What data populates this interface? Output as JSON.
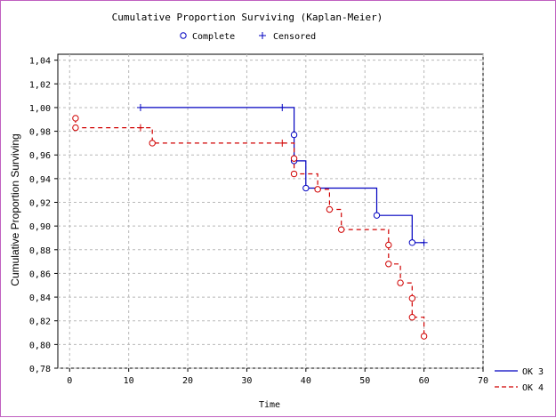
{
  "chart_data": {
    "type": "line",
    "title": "Cumulative Proportion Surviving (Kaplan-Meier)",
    "xlabel": "Time",
    "ylabel": "Cumulative Proportion Surviving",
    "xlim": [
      -2,
      70
    ],
    "ylim": [
      0.78,
      1.045
    ],
    "x_ticks": [
      0,
      10,
      20,
      30,
      40,
      50,
      60,
      70
    ],
    "x_tick_labels": [
      "0",
      "10",
      "20",
      "30",
      "40",
      "50",
      "60",
      "70"
    ],
    "y_ticks": [
      0.78,
      0.8,
      0.82,
      0.84,
      0.86,
      0.88,
      0.9,
      0.92,
      0.94,
      0.96,
      0.98,
      1.0,
      1.02,
      1.04
    ],
    "y_tick_labels": [
      "0,78",
      "0,80",
      "0,82",
      "0,84",
      "0,86",
      "0,88",
      "0,90",
      "0,92",
      "0,94",
      "0,96",
      "0,98",
      "1,00",
      "1,02",
      "1,04"
    ],
    "grid": true,
    "markers_legend": [
      {
        "label": "Complete",
        "symbol": "circle"
      },
      {
        "label": "Censored",
        "symbol": "plus"
      }
    ],
    "series": [
      {
        "name": "OK 3",
        "color": "#0000c0",
        "dash": "solid",
        "steps": [
          [
            12,
            1.0
          ],
          [
            38,
            1.0
          ],
          [
            38,
            0.977
          ],
          [
            38,
            0.955
          ],
          [
            40,
            0.955
          ],
          [
            40,
            0.932
          ],
          [
            52,
            0.932
          ],
          [
            52,
            0.909
          ],
          [
            58,
            0.909
          ],
          [
            58,
            0.886
          ],
          [
            60,
            0.886
          ]
        ],
        "complete": [
          [
            38,
            0.977
          ],
          [
            38,
            0.955
          ],
          [
            40,
            0.932
          ],
          [
            52,
            0.909
          ],
          [
            58,
            0.886
          ]
        ],
        "censored": [
          [
            12,
            1.0
          ],
          [
            36,
            1.0
          ],
          [
            60,
            0.886
          ]
        ]
      },
      {
        "name": "OK 4",
        "color": "#d00000",
        "dash": "dashed",
        "steps": [
          [
            1,
            0.991
          ],
          [
            1,
            0.983
          ],
          [
            14,
            0.983
          ],
          [
            14,
            0.97
          ],
          [
            38,
            0.97
          ],
          [
            38,
            0.957
          ],
          [
            38,
            0.944
          ],
          [
            42,
            0.944
          ],
          [
            42,
            0.931
          ],
          [
            44,
            0.931
          ],
          [
            44,
            0.914
          ],
          [
            46,
            0.914
          ],
          [
            46,
            0.897
          ],
          [
            54,
            0.897
          ],
          [
            54,
            0.884
          ],
          [
            54,
            0.868
          ],
          [
            56,
            0.868
          ],
          [
            56,
            0.852
          ],
          [
            58,
            0.852
          ],
          [
            58,
            0.839
          ],
          [
            58,
            0.823
          ],
          [
            60,
            0.823
          ],
          [
            60,
            0.807
          ]
        ],
        "complete": [
          [
            1,
            0.991
          ],
          [
            1,
            0.983
          ],
          [
            14,
            0.97
          ],
          [
            38,
            0.957
          ],
          [
            38,
            0.944
          ],
          [
            42,
            0.931
          ],
          [
            44,
            0.914
          ],
          [
            46,
            0.897
          ],
          [
            54,
            0.884
          ],
          [
            54,
            0.868
          ],
          [
            56,
            0.852
          ],
          [
            58,
            0.839
          ],
          [
            58,
            0.823
          ],
          [
            60,
            0.807
          ]
        ],
        "censored": [
          [
            12,
            0.983
          ],
          [
            36,
            0.97
          ]
        ]
      }
    ]
  }
}
